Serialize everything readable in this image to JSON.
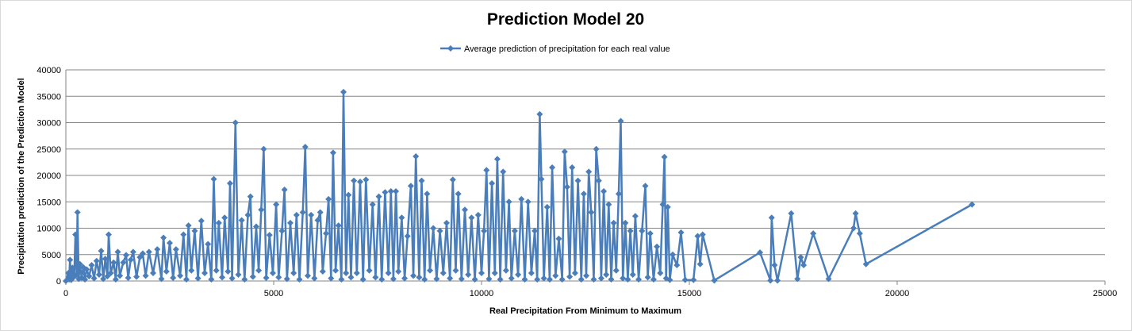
{
  "chart_data": {
    "type": "line",
    "title": "Prediction Model 20",
    "xlabel": "Real Precipitation From Minimum to Maximum",
    "ylabel": "Precipitation prediction of the Prediction Model",
    "xlim": [
      0,
      25000
    ],
    "ylim": [
      0,
      40000
    ],
    "x_ticks": [
      "0",
      "5000",
      "10000",
      "15000",
      "20000",
      "25000"
    ],
    "y_ticks": [
      "0",
      "5000",
      "10000",
      "15000",
      "20000",
      "25000",
      "30000",
      "35000",
      "40000"
    ],
    "grid": "horizontal",
    "legend_position": "top-center",
    "marker": "diamond",
    "color": "#4a7ebb",
    "series": [
      {
        "name": "Average prediction of precipitation for each real value",
        "points": [
          [
            0,
            0
          ],
          [
            60,
            1500
          ],
          [
            80,
            300
          ],
          [
            100,
            4000
          ],
          [
            130,
            200
          ],
          [
            160,
            2500
          ],
          [
            200,
            800
          ],
          [
            230,
            8800
          ],
          [
            260,
            1200
          ],
          [
            280,
            13000
          ],
          [
            310,
            400
          ],
          [
            340,
            3200
          ],
          [
            380,
            600
          ],
          [
            420,
            2600
          ],
          [
            460,
            300
          ],
          [
            500,
            2200
          ],
          [
            560,
            900
          ],
          [
            620,
            3000
          ],
          [
            680,
            500
          ],
          [
            740,
            3800
          ],
          [
            800,
            1200
          ],
          [
            850,
            5700
          ],
          [
            900,
            400
          ],
          [
            950,
            4200
          ],
          [
            1000,
            900
          ],
          [
            1030,
            8800
          ],
          [
            1080,
            1500
          ],
          [
            1150,
            3500
          ],
          [
            1200,
            300
          ],
          [
            1250,
            5500
          ],
          [
            1300,
            1000
          ],
          [
            1380,
            3500
          ],
          [
            1450,
            4900
          ],
          [
            1500,
            600
          ],
          [
            1560,
            4000
          ],
          [
            1620,
            5500
          ],
          [
            1700,
            800
          ],
          [
            1780,
            4500
          ],
          [
            1850,
            5200
          ],
          [
            1920,
            1000
          ],
          [
            2000,
            5500
          ],
          [
            2100,
            1500
          ],
          [
            2200,
            6000
          ],
          [
            2300,
            400
          ],
          [
            2350,
            8200
          ],
          [
            2420,
            1800
          ],
          [
            2500,
            7200
          ],
          [
            2580,
            600
          ],
          [
            2650,
            6000
          ],
          [
            2750,
            1000
          ],
          [
            2830,
            8800
          ],
          [
            2900,
            300
          ],
          [
            2950,
            10500
          ],
          [
            3020,
            2000
          ],
          [
            3100,
            9500
          ],
          [
            3180,
            500
          ],
          [
            3260,
            11400
          ],
          [
            3340,
            1500
          ],
          [
            3420,
            7000
          ],
          [
            3500,
            300
          ],
          [
            3560,
            19300
          ],
          [
            3620,
            2000
          ],
          [
            3680,
            11000
          ],
          [
            3760,
            700
          ],
          [
            3820,
            12000
          ],
          [
            3900,
            1800
          ],
          [
            3950,
            18500
          ],
          [
            4000,
            500
          ],
          [
            4080,
            30000
          ],
          [
            4150,
            1200
          ],
          [
            4230,
            11500
          ],
          [
            4300,
            300
          ],
          [
            4380,
            12500
          ],
          [
            4440,
            16000
          ],
          [
            4500,
            800
          ],
          [
            4580,
            10300
          ],
          [
            4640,
            2000
          ],
          [
            4700,
            13500
          ],
          [
            4760,
            25000
          ],
          [
            4820,
            600
          ],
          [
            4900,
            8700
          ],
          [
            4980,
            1500
          ],
          [
            5060,
            14500
          ],
          [
            5120,
            700
          ],
          [
            5200,
            9500
          ],
          [
            5260,
            17300
          ],
          [
            5320,
            400
          ],
          [
            5400,
            11000
          ],
          [
            5480,
            1500
          ],
          [
            5550,
            12500
          ],
          [
            5620,
            300
          ],
          [
            5700,
            13000
          ],
          [
            5760,
            25400
          ],
          [
            5820,
            1000
          ],
          [
            5900,
            12500
          ],
          [
            5980,
            500
          ],
          [
            6060,
            11500
          ],
          [
            6120,
            13000
          ],
          [
            6180,
            1800
          ],
          [
            6260,
            9000
          ],
          [
            6320,
            15500
          ],
          [
            6380,
            500
          ],
          [
            6430,
            24300
          ],
          [
            6490,
            2000
          ],
          [
            6560,
            10500
          ],
          [
            6630,
            300
          ],
          [
            6680,
            35800
          ],
          [
            6740,
            1500
          ],
          [
            6800,
            16300
          ],
          [
            6860,
            700
          ],
          [
            6930,
            19000
          ],
          [
            7000,
            1500
          ],
          [
            7080,
            18800
          ],
          [
            7150,
            300
          ],
          [
            7220,
            19200
          ],
          [
            7300,
            2000
          ],
          [
            7380,
            14500
          ],
          [
            7450,
            700
          ],
          [
            7530,
            16000
          ],
          [
            7600,
            300
          ],
          [
            7680,
            16800
          ],
          [
            7760,
            1500
          ],
          [
            7820,
            17000
          ],
          [
            7880,
            400
          ],
          [
            7940,
            17000
          ],
          [
            8000,
            1800
          ],
          [
            8080,
            12000
          ],
          [
            8150,
            500
          ],
          [
            8220,
            8500
          ],
          [
            8300,
            18000
          ],
          [
            8360,
            1000
          ],
          [
            8420,
            23600
          ],
          [
            8500,
            700
          ],
          [
            8560,
            19000
          ],
          [
            8630,
            300
          ],
          [
            8690,
            16500
          ],
          [
            8760,
            2000
          ],
          [
            8840,
            10000
          ],
          [
            8920,
            400
          ],
          [
            9000,
            9500
          ],
          [
            9080,
            1500
          ],
          [
            9160,
            11000
          ],
          [
            9240,
            500
          ],
          [
            9310,
            19200
          ],
          [
            9380,
            2000
          ],
          [
            9440,
            16500
          ],
          [
            9520,
            400
          ],
          [
            9600,
            13500
          ],
          [
            9680,
            1200
          ],
          [
            9760,
            12000
          ],
          [
            9840,
            300
          ],
          [
            9920,
            12500
          ],
          [
            10000,
            1500
          ],
          [
            10060,
            9500
          ],
          [
            10120,
            21000
          ],
          [
            10180,
            400
          ],
          [
            10250,
            18500
          ],
          [
            10320,
            1500
          ],
          [
            10380,
            23100
          ],
          [
            10450,
            300
          ],
          [
            10520,
            20700
          ],
          [
            10590,
            2000
          ],
          [
            10660,
            15000
          ],
          [
            10720,
            500
          ],
          [
            10800,
            9500
          ],
          [
            10880,
            1200
          ],
          [
            10960,
            15500
          ],
          [
            11040,
            300
          ],
          [
            11120,
            15000
          ],
          [
            11200,
            1500
          ],
          [
            11280,
            9500
          ],
          [
            11340,
            300
          ],
          [
            11400,
            31600
          ],
          [
            11440,
            19300
          ],
          [
            11500,
            500
          ],
          [
            11580,
            14000
          ],
          [
            11640,
            300
          ],
          [
            11700,
            21500
          ],
          [
            11780,
            1000
          ],
          [
            11860,
            8000
          ],
          [
            11940,
            300
          ],
          [
            12000,
            24500
          ],
          [
            12060,
            17800
          ],
          [
            12120,
            800
          ],
          [
            12180,
            21500
          ],
          [
            12250,
            1500
          ],
          [
            12320,
            19000
          ],
          [
            12400,
            300
          ],
          [
            12460,
            16500
          ],
          [
            12520,
            1000
          ],
          [
            12580,
            20700
          ],
          [
            12640,
            13000
          ],
          [
            12700,
            300
          ],
          [
            12760,
            25000
          ],
          [
            12820,
            19000
          ],
          [
            12880,
            500
          ],
          [
            12940,
            17000
          ],
          [
            13000,
            1200
          ],
          [
            13060,
            14500
          ],
          [
            13120,
            300
          ],
          [
            13180,
            11000
          ],
          [
            13240,
            2000
          ],
          [
            13300,
            16500
          ],
          [
            13350,
            30300
          ],
          [
            13400,
            500
          ],
          [
            13460,
            11000
          ],
          [
            13520,
            300
          ],
          [
            13580,
            9500
          ],
          [
            13640,
            1200
          ],
          [
            13700,
            12300
          ],
          [
            13780,
            300
          ],
          [
            13860,
            9500
          ],
          [
            13940,
            18000
          ],
          [
            14000,
            700
          ],
          [
            14060,
            9000
          ],
          [
            14140,
            300
          ],
          [
            14220,
            6500
          ],
          [
            14300,
            1500
          ],
          [
            14360,
            14500
          ],
          [
            14400,
            23500
          ],
          [
            14440,
            500
          ],
          [
            14480,
            14000
          ],
          [
            14530,
            200
          ],
          [
            14600,
            5000
          ],
          [
            14700,
            3000
          ],
          [
            14800,
            9200
          ],
          [
            14900,
            200
          ],
          [
            15100,
            200
          ],
          [
            15200,
            8500
          ],
          [
            15260,
            3200
          ],
          [
            15320,
            8800
          ],
          [
            15600,
            100
          ],
          [
            16700,
            5400
          ],
          [
            16950,
            100
          ],
          [
            16980,
            12000
          ],
          [
            17050,
            3000
          ],
          [
            17120,
            100
          ],
          [
            17450,
            12800
          ],
          [
            17600,
            400
          ],
          [
            17680,
            4500
          ],
          [
            17750,
            3000
          ],
          [
            17980,
            9000
          ],
          [
            18350,
            400
          ],
          [
            18950,
            10000
          ],
          [
            19000,
            12800
          ],
          [
            19100,
            9000
          ],
          [
            19250,
            3200
          ],
          [
            21800,
            14500
          ]
        ]
      }
    ]
  }
}
